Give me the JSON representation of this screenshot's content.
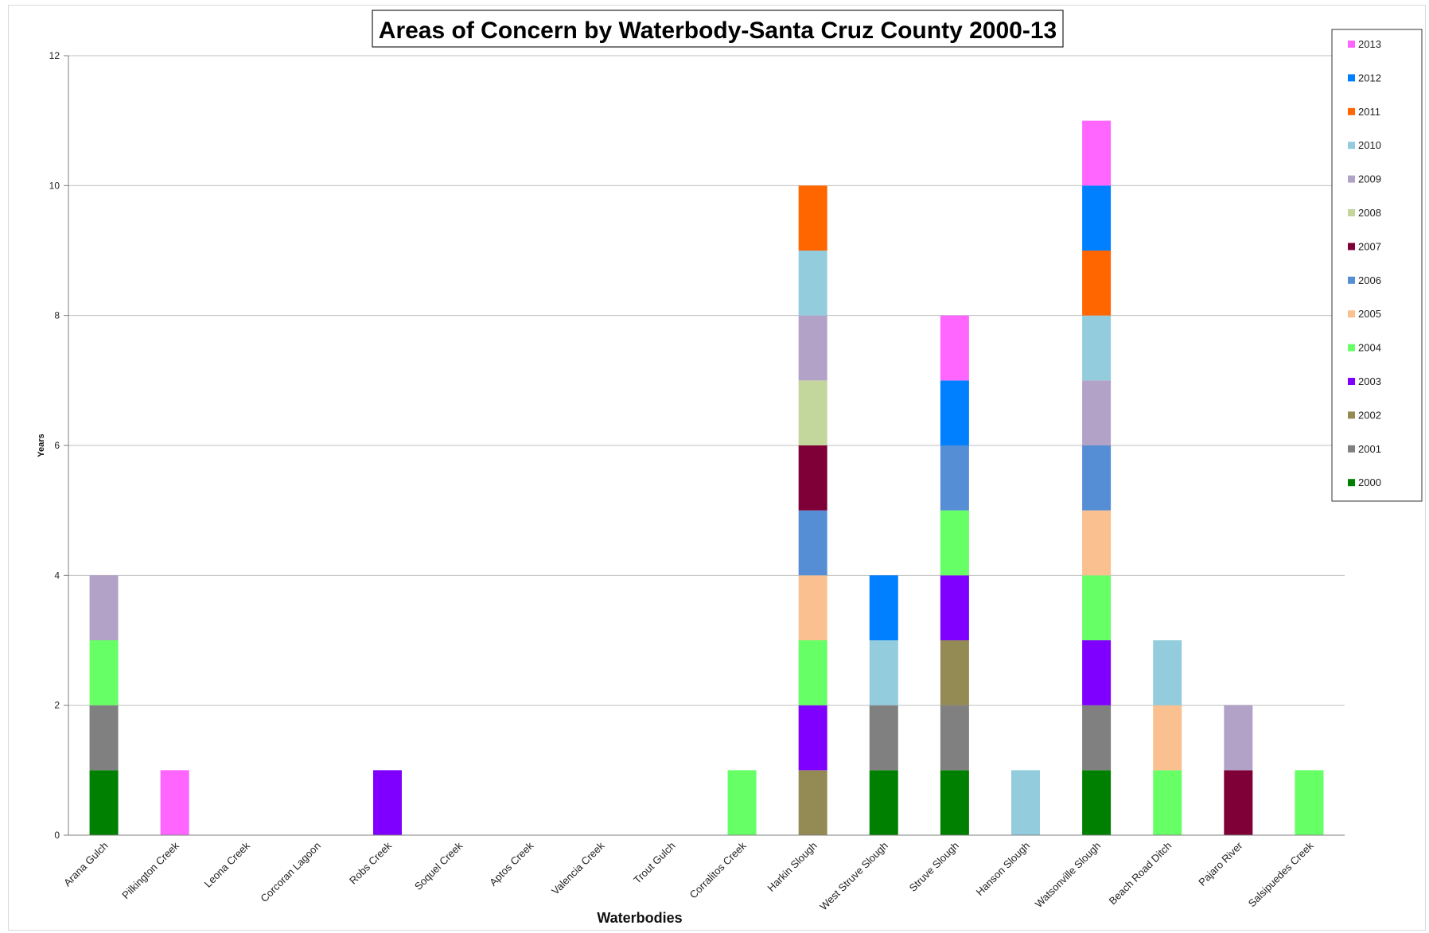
{
  "chart_data": {
    "type": "bar",
    "stacked": true,
    "title": "Areas of Concern by Waterbody-Santa Cruz County 2000-13",
    "xlabel": "Waterbodies",
    "ylabel": "Years",
    "ylim": [
      0,
      12
    ],
    "yticks": [
      0,
      2,
      4,
      6,
      8,
      10,
      12
    ],
    "grid": true,
    "legend_position": "right",
    "categories": [
      "Arana Gulch",
      "Pilkington Creek",
      "Leona Creek",
      "Corcoran Lagoon",
      "Robs Creek",
      "Soquel Creek",
      "Aptos Creek",
      "Valencia Creek",
      "Trout Gulch",
      "Corralitos Creek",
      "Harkin Slough",
      "West Struve Slough",
      "Struve Slough",
      "Hanson Slough",
      "Watsonville Slough",
      "Beach Road Ditch",
      "Pajaro River",
      "Salsipuedes Creek"
    ],
    "series": [
      {
        "name": "2000",
        "color": "#008000",
        "values": [
          1,
          0,
          0,
          0,
          0,
          0,
          0,
          0,
          0,
          0,
          0,
          1,
          1,
          0,
          1,
          0,
          0,
          0
        ]
      },
      {
        "name": "2001",
        "color": "#808080",
        "values": [
          1,
          0,
          0,
          0,
          0,
          0,
          0,
          0,
          0,
          0,
          0,
          1,
          1,
          0,
          1,
          0,
          0,
          0
        ]
      },
      {
        "name": "2002",
        "color": "#948a54",
        "values": [
          0,
          0,
          0,
          0,
          0,
          0,
          0,
          0,
          0,
          0,
          1,
          0,
          1,
          0,
          0,
          0,
          0,
          0
        ]
      },
      {
        "name": "2003",
        "color": "#8000ff",
        "values": [
          0,
          0,
          0,
          0,
          1,
          0,
          0,
          0,
          0,
          0,
          1,
          0,
          1,
          0,
          1,
          0,
          0,
          0
        ]
      },
      {
        "name": "2004",
        "color": "#66ff66",
        "values": [
          1,
          0,
          0,
          0,
          0,
          0,
          0,
          0,
          0,
          1,
          1,
          0,
          1,
          0,
          1,
          1,
          0,
          1
        ]
      },
      {
        "name": "2005",
        "color": "#fac090",
        "values": [
          0,
          0,
          0,
          0,
          0,
          0,
          0,
          0,
          0,
          0,
          1,
          0,
          0,
          0,
          1,
          1,
          0,
          0
        ]
      },
      {
        "name": "2006",
        "color": "#558ed5",
        "values": [
          0,
          0,
          0,
          0,
          0,
          0,
          0,
          0,
          0,
          0,
          1,
          0,
          1,
          0,
          1,
          0,
          0,
          0
        ]
      },
      {
        "name": "2007",
        "color": "#7f0037",
        "values": [
          0,
          0,
          0,
          0,
          0,
          0,
          0,
          0,
          0,
          0,
          1,
          0,
          0,
          0,
          0,
          0,
          1,
          0
        ]
      },
      {
        "name": "2008",
        "color": "#c3d69b",
        "values": [
          0,
          0,
          0,
          0,
          0,
          0,
          0,
          0,
          0,
          0,
          1,
          0,
          0,
          0,
          0,
          0,
          0,
          0
        ]
      },
      {
        "name": "2009",
        "color": "#b3a2c7",
        "values": [
          1,
          0,
          0,
          0,
          0,
          0,
          0,
          0,
          0,
          0,
          1,
          0,
          0,
          0,
          1,
          0,
          1,
          0
        ]
      },
      {
        "name": "2010",
        "color": "#93cddd",
        "values": [
          0,
          0,
          0,
          0,
          0,
          0,
          0,
          0,
          0,
          0,
          1,
          1,
          0,
          1,
          1,
          1,
          0,
          0
        ]
      },
      {
        "name": "2011",
        "color": "#ff6600",
        "values": [
          0,
          0,
          0,
          0,
          0,
          0,
          0,
          0,
          0,
          0,
          1,
          0,
          0,
          0,
          1,
          0,
          0,
          0
        ]
      },
      {
        "name": "2012",
        "color": "#0080ff",
        "values": [
          0,
          0,
          0,
          0,
          0,
          0,
          0,
          0,
          0,
          0,
          0,
          1,
          1,
          0,
          1,
          0,
          0,
          0
        ]
      },
      {
        "name": "2013",
        "color": "#ff66ff",
        "values": [
          0,
          1,
          0,
          0,
          0,
          0,
          0,
          0,
          0,
          0,
          0,
          0,
          1,
          0,
          1,
          0,
          0,
          0
        ]
      }
    ]
  }
}
